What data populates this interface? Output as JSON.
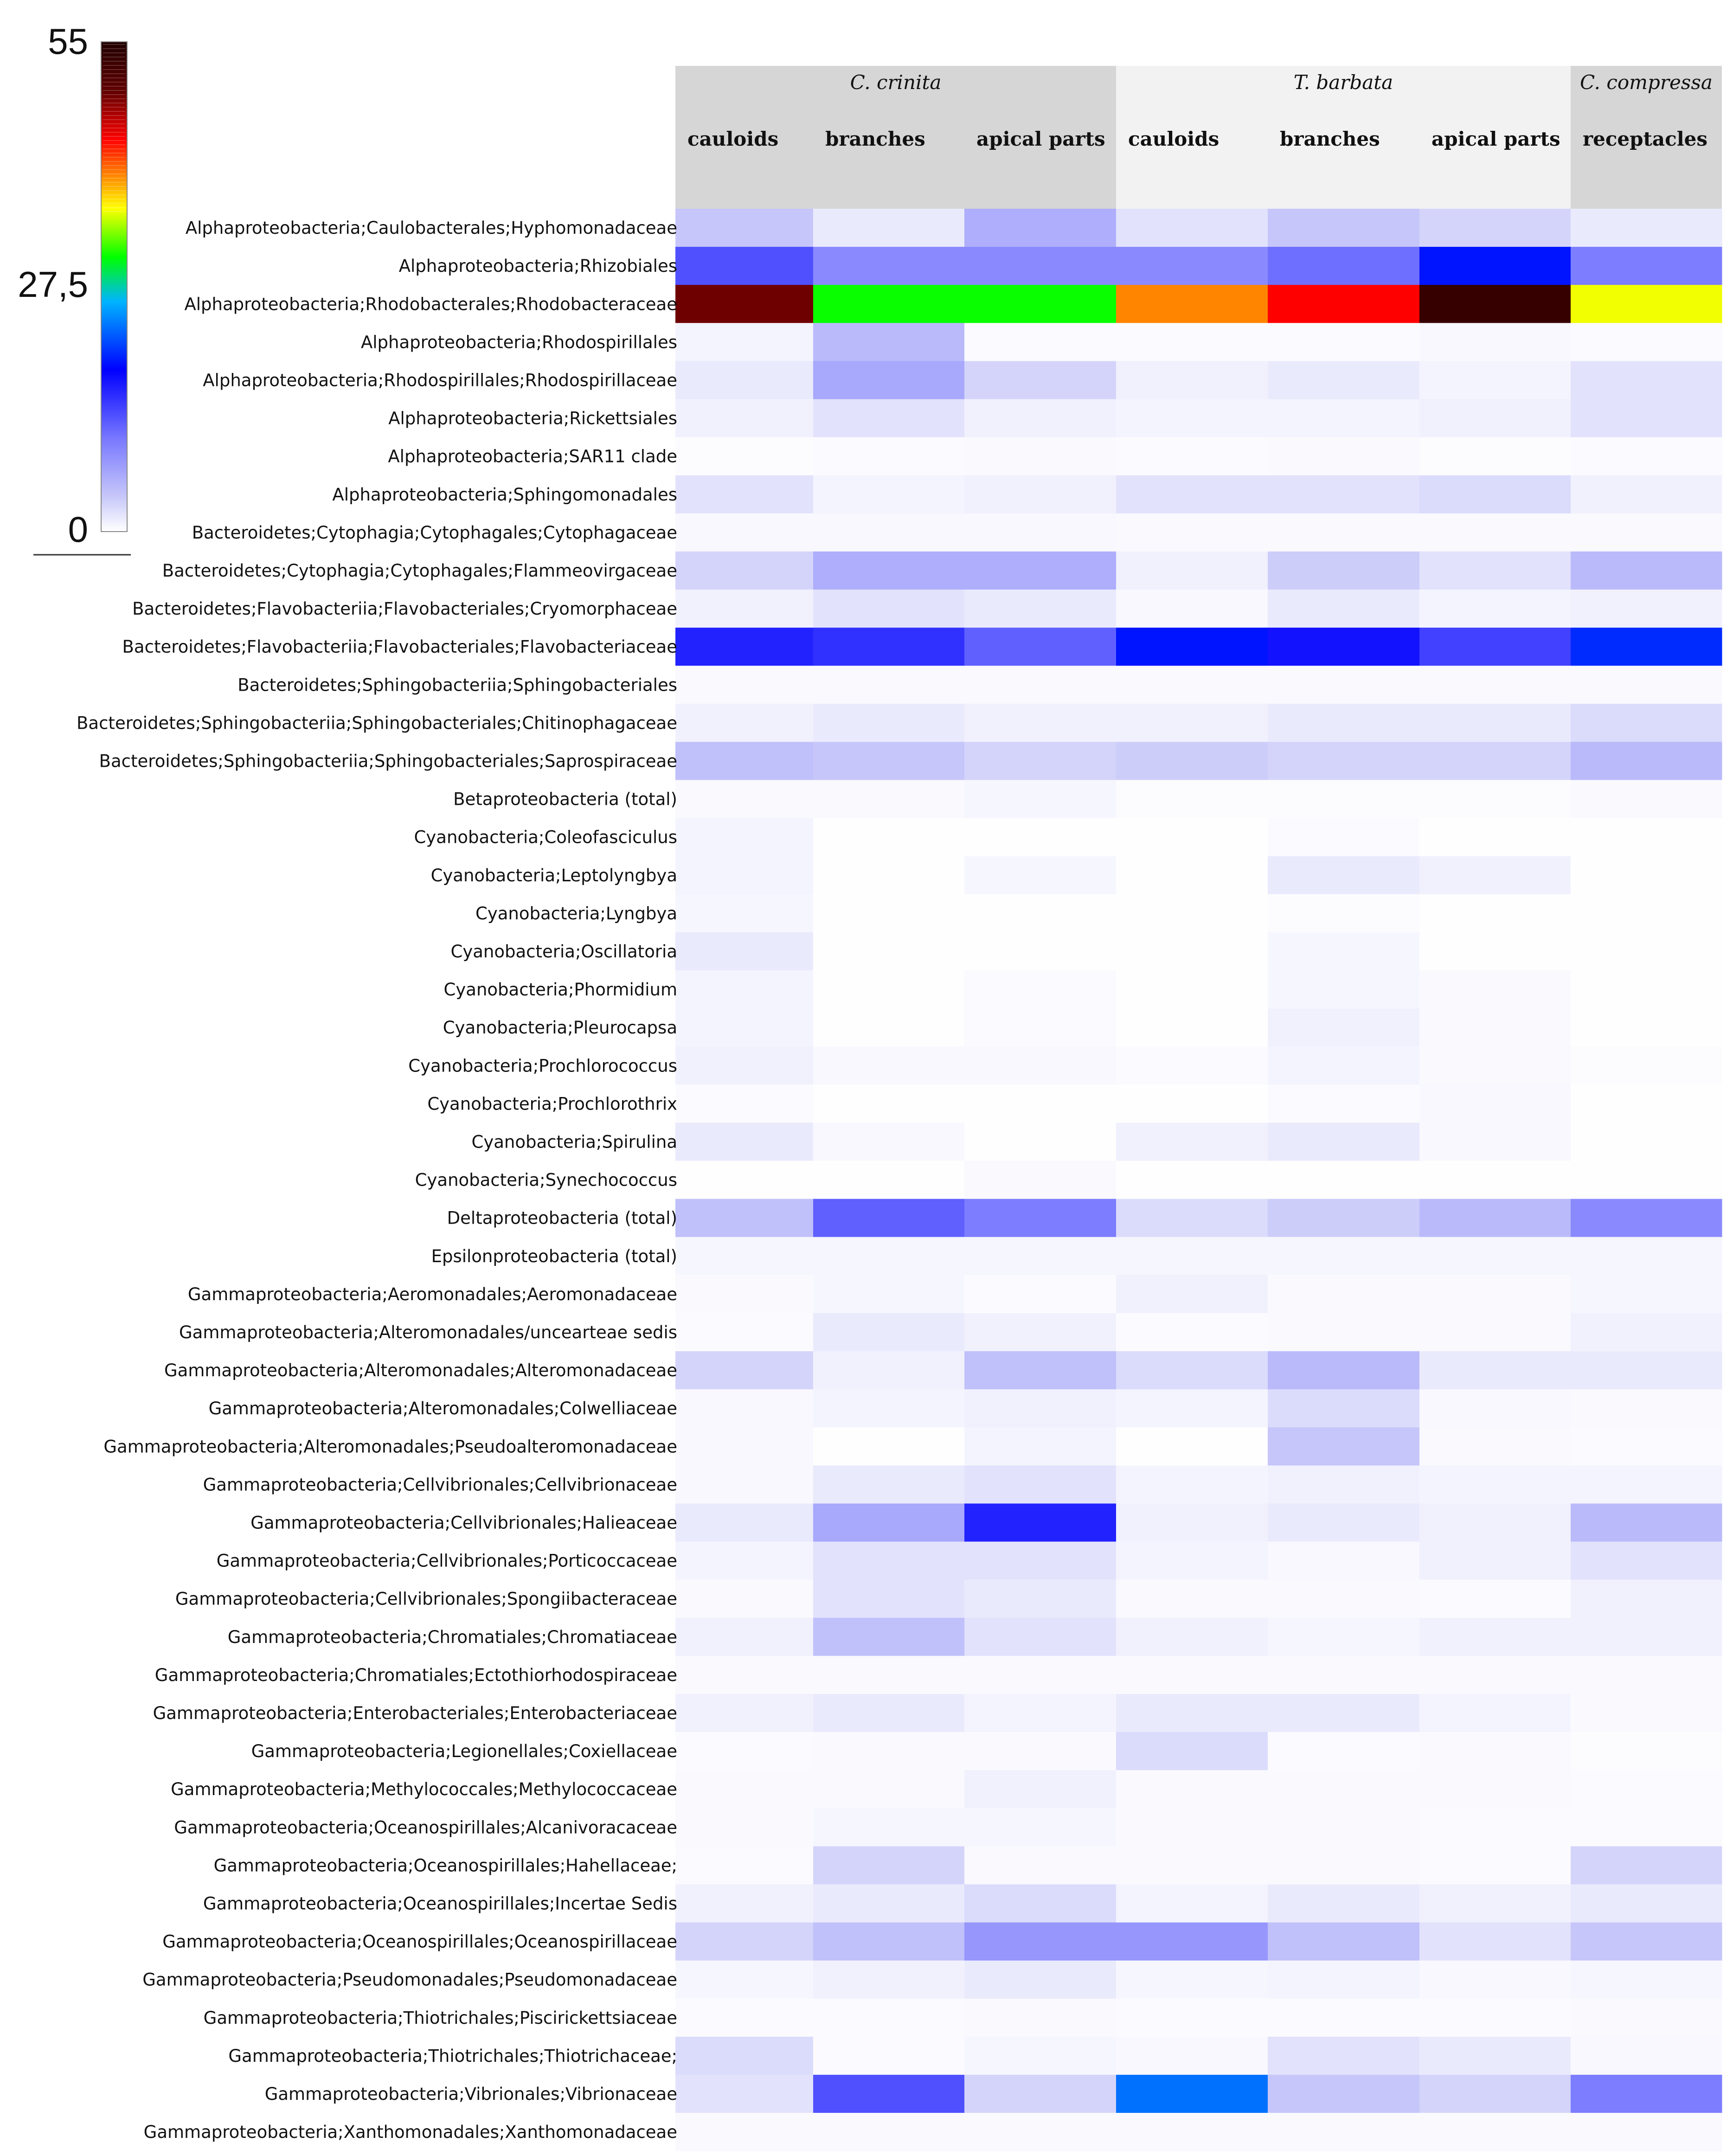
{
  "chart_data": {
    "type": "heatmap",
    "title": "",
    "color_scale": {
      "min": 0,
      "max": 55,
      "ticks": [
        "55",
        "27,5",
        "0"
      ],
      "stops": [
        "#ffffff",
        "#c8c8fa",
        "#7878ff",
        "#0000ff",
        "#00b4ff",
        "#00ff00",
        "#ffff00",
        "#ff8000",
        "#ff0000",
        "#600000",
        "#200000"
      ]
    },
    "groups": [
      {
        "name": "C. crinita",
        "span": 3,
        "bg": "#d6d6d6"
      },
      {
        "name": "T. barbata",
        "span": 3,
        "bg": "#f2f2f2"
      },
      {
        "name": "C. compressa",
        "span": 1,
        "bg": "#d6d6d6"
      }
    ],
    "columns": [
      "cauloids",
      "branches",
      "apical parts",
      "cauloids",
      "branches",
      "apical parts",
      "receptacles"
    ],
    "rows": [
      {
        "label": "Alphaproteobacteria;Caulobacterales;Hyphomonadaceae",
        "values": [
          4,
          1.5,
          6,
          2,
          4,
          3,
          1.5
        ]
      },
      {
        "label": "Alphaproteobacteria;Rhizobiales",
        "values": [
          13,
          9,
          9,
          9,
          11,
          19,
          10
        ]
      },
      {
        "label": "Alphaproteobacteria;Rhodobacterales;Rhodobacteraceae",
        "values": [
          49,
          31,
          31,
          40,
          44,
          53,
          36
        ]
      },
      {
        "label": "Alphaproteobacteria;Rhodospirillales",
        "values": [
          0.8,
          5,
          0.3,
          0.3,
          0.3,
          0.5,
          0.3
        ]
      },
      {
        "label": "Alphaproteobacteria;Rhodospirillales;Rhodospirillaceae",
        "values": [
          1.5,
          6.5,
          3,
          1,
          1.5,
          0.8,
          2
        ]
      },
      {
        "label": "Alphaproteobacteria;Rickettsiales",
        "values": [
          1,
          2,
          1,
          0.8,
          0.8,
          1,
          2
        ]
      },
      {
        "label": "Alphaproteobacteria;SAR11 clade",
        "values": [
          0.2,
          0.3,
          0.4,
          0.3,
          0.4,
          0.2,
          0.3
        ]
      },
      {
        "label": "Alphaproteobacteria;Sphingomonadales",
        "values": [
          2,
          0.8,
          1,
          2,
          2,
          2.5,
          1
        ]
      },
      {
        "label": "Bacteroidetes;Cytophagia;Cytophagales;Cytophagaceae",
        "values": [
          0.5,
          0.5,
          0.5,
          0.4,
          0.4,
          0.4,
          0.4
        ]
      },
      {
        "label": "Bacteroidetes;Cytophagia;Cytophagales;Flammeovirgaceae",
        "values": [
          3,
          6,
          6,
          1,
          3.5,
          2,
          5
        ]
      },
      {
        "label": "Bacteroidetes;Flavobacteriia;Flavobacteriales;Cryomorphaceae",
        "values": [
          1,
          2,
          1.5,
          0.5,
          1.5,
          0.8,
          1
        ]
      },
      {
        "label": "Bacteroidetes;Flavobacteriia;Flavobacteriales;Flavobacteriaceae",
        "values": [
          16,
          15,
          12,
          19,
          17,
          14,
          20
        ]
      },
      {
        "label": "Bacteroidetes;Sphingobacteriia;Sphingobacteriales",
        "values": [
          0.4,
          0.4,
          0.4,
          0.4,
          0.4,
          0.4,
          0.4
        ]
      },
      {
        "label": "Bacteroidetes;Sphingobacteriia;Sphingobacteriales;Chitinophagaceae",
        "values": [
          1,
          1.5,
          1,
          1,
          1.5,
          1.5,
          2.5
        ]
      },
      {
        "label": "Bacteroidetes;Sphingobacteriia;Sphingobacteriales;Saprospiraceae",
        "values": [
          4.5,
          4,
          3,
          3.5,
          3,
          3,
          5
        ]
      },
      {
        "label": "Betaproteobacteria (total)",
        "values": [
          0.4,
          0.4,
          0.6,
          0.2,
          0.2,
          0.2,
          0.4
        ]
      },
      {
        "label": "Cyanobacteria;Coleofasciculus",
        "values": [
          0.8,
          0.1,
          0.1,
          0.1,
          0.3,
          0.1,
          0.1
        ]
      },
      {
        "label": "Cyanobacteria;Leptolyngbya",
        "values": [
          0.8,
          0.1,
          0.6,
          0.1,
          1.5,
          1,
          0.1
        ]
      },
      {
        "label": "Cyanobacteria;Lyngbya",
        "values": [
          0.6,
          0.1,
          0.1,
          0.1,
          0.2,
          0.1,
          0.1
        ]
      },
      {
        "label": "Cyanobacteria;Oscillatoria",
        "values": [
          1.5,
          0.1,
          0.1,
          0.1,
          0.6,
          0.1,
          0.1
        ]
      },
      {
        "label": "Cyanobacteria;Phormidium",
        "values": [
          0.8,
          0.1,
          0.3,
          0.1,
          0.6,
          0.4,
          0.1
        ]
      },
      {
        "label": "Cyanobacteria;Pleurocapsa",
        "values": [
          0.8,
          0.1,
          0.3,
          0.1,
          1,
          0.4,
          0.1
        ]
      },
      {
        "label": "Cyanobacteria;Prochlorococcus",
        "values": [
          1,
          0.5,
          0.5,
          0.3,
          0.8,
          0.4,
          0.2
        ]
      },
      {
        "label": "Cyanobacteria;Prochlorothrix",
        "values": [
          0.3,
          0.1,
          0.1,
          0.1,
          0.3,
          0.5,
          0.1
        ]
      },
      {
        "label": "Cyanobacteria;Spirulina",
        "values": [
          1.5,
          0.5,
          0.1,
          1,
          1.5,
          0.5,
          0.1
        ]
      },
      {
        "label": "Cyanobacteria;Synechococcus",
        "values": [
          0.1,
          0.1,
          0.4,
          0.1,
          0.1,
          0.1,
          0.1
        ]
      },
      {
        "label": "Deltaproteobacteria  (total)",
        "values": [
          4.5,
          12,
          10,
          2.5,
          3.5,
          5,
          9
        ]
      },
      {
        "label": "Epsilonproteobacteria  (total)",
        "values": [
          0.6,
          0.6,
          0.6,
          0.6,
          0.6,
          0.6,
          0.6
        ]
      },
      {
        "label": "Gammaproteobacteria;Aeromonadales;Aeromonadaceae",
        "values": [
          0.4,
          0.6,
          0.3,
          1,
          0.4,
          0.4,
          0.6
        ]
      },
      {
        "label": "Gammaproteobacteria;Alteromonadales/uncearteae sedis",
        "values": [
          0.3,
          1.5,
          1,
          0.3,
          0.4,
          0.4,
          1
        ]
      },
      {
        "label": "Gammaproteobacteria;Alteromonadales;Alteromonadaceae",
        "values": [
          3,
          1,
          4.5,
          2.5,
          5,
          1.5,
          1.5
        ]
      },
      {
        "label": "Gammaproteobacteria;Alteromonadales;Colwelliaceae",
        "values": [
          0.5,
          0.8,
          1,
          0.8,
          2.5,
          0.5,
          0.4
        ]
      },
      {
        "label": "Gammaproteobacteria;Alteromonadales;Pseudoalteromonadaceae",
        "values": [
          0.5,
          0.1,
          0.8,
          0.1,
          4,
          0.4,
          0.3
        ]
      },
      {
        "label": "Gammaproteobacteria;Cellvibrionales;Cellvibrionaceae",
        "values": [
          0.5,
          1.5,
          2,
          0.8,
          1,
          0.8,
          0.8
        ]
      },
      {
        "label": "Gammaproteobacteria;Cellvibrionales;Halieaceae",
        "values": [
          1.5,
          6.5,
          16,
          1,
          1.5,
          1,
          5
        ]
      },
      {
        "label": "Gammaproteobacteria;Cellvibrionales;Porticoccaceae",
        "values": [
          0.8,
          2,
          2,
          0.8,
          0.5,
          1,
          2
        ]
      },
      {
        "label": "Gammaproteobacteria;Cellvibrionales;Spongiibacteraceae",
        "values": [
          0.4,
          2,
          1.5,
          0.4,
          0.4,
          0.3,
          1
        ]
      },
      {
        "label": "Gammaproteobacteria;Chromatiales;Chromatiaceae",
        "values": [
          1,
          4.5,
          2,
          1,
          0.6,
          1,
          1
        ]
      },
      {
        "label": "Gammaproteobacteria;Chromatiales;Ectothiorhodospiraceae",
        "values": [
          0.4,
          0.4,
          0.4,
          0.4,
          0.4,
          0.4,
          0.4
        ]
      },
      {
        "label": "Gammaproteobacteria;Enterobacteriales;Enterobacteriaceae",
        "values": [
          1,
          1.5,
          0.8,
          1.5,
          1.5,
          0.8,
          0.4
        ]
      },
      {
        "label": "Gammaproteobacteria;Legionellales;Coxiellaceae",
        "values": [
          0.3,
          0.4,
          0.4,
          2.5,
          0.3,
          0.4,
          0.2
        ]
      },
      {
        "label": "Gammaproteobacteria;Methylococcales;Methylococcaceae",
        "values": [
          0.4,
          0.4,
          1,
          0.4,
          0.4,
          0.4,
          0.3
        ]
      },
      {
        "label": "Gammaproteobacteria;Oceanospirillales;Alcanivoracaceae",
        "values": [
          0.4,
          0.6,
          0.6,
          0.4,
          0.4,
          0.3,
          0.3
        ]
      },
      {
        "label": "Gammaproteobacteria;Oceanospirillales;Hahellaceae;",
        "values": [
          0.3,
          3,
          0.4,
          0.4,
          0.4,
          0.3,
          3
        ]
      },
      {
        "label": "Gammaproteobacteria;Oceanospirillales;Incertae Sedis",
        "values": [
          1,
          1.5,
          2.5,
          0.8,
          1.5,
          1,
          1.5
        ]
      },
      {
        "label": "Gammaproteobacteria;Oceanospirillales;Oceanospirillaceae",
        "values": [
          3,
          4.5,
          8,
          8,
          4.5,
          2,
          4
        ]
      },
      {
        "label": "Gammaproteobacteria;Pseudomonadales;Pseudomonadaceae",
        "values": [
          0.6,
          1,
          1.5,
          0.6,
          0.8,
          0.5,
          0.6
        ]
      },
      {
        "label": "Gammaproteobacteria;Thiotrichales;Piscirickettsiaceae",
        "values": [
          0.3,
          0.3,
          0.4,
          0.3,
          0.3,
          0.3,
          0.4
        ]
      },
      {
        "label": "Gammaproteobacteria;Thiotrichales;Thiotrichaceae;",
        "values": [
          2.5,
          0.3,
          0.6,
          0.5,
          2,
          1.5,
          0.5
        ]
      },
      {
        "label": "Gammaproteobacteria;Vibrionales;Vibrionaceae",
        "values": [
          2,
          13,
          3,
          23,
          4,
          3,
          10
        ]
      },
      {
        "label": "Gammaproteobacteria;Xanthomonadales;Xanthomonadaceae",
        "values": [
          0.4,
          0.4,
          0.4,
          0.4,
          0.4,
          0.4,
          0.4
        ]
      }
    ]
  }
}
